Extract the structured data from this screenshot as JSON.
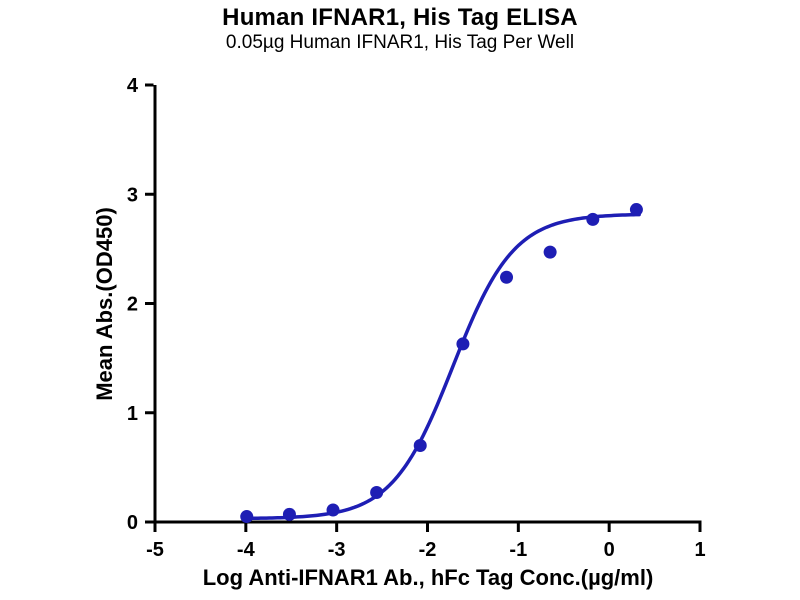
{
  "title": "Human IFNAR1, His Tag ELISA",
  "subtitle": "0.05µg Human IFNAR1, His Tag Per Well",
  "chart_data": {
    "type": "scatter",
    "title": "Human IFNAR1, His Tag ELISA",
    "subtitle": "0.05µg Human IFNAR1, His Tag Per Well",
    "xlabel": "Log Anti-IFNAR1 Ab., hFc Tag Conc.(µg/ml)",
    "ylabel": "Mean Abs.(OD450)",
    "xlim": [
      -5,
      1
    ],
    "ylim": [
      0,
      4
    ],
    "x_ticks": [
      -5,
      -4,
      -3,
      -2,
      -1,
      0,
      1
    ],
    "y_ticks": [
      0,
      1,
      2,
      3,
      4
    ],
    "grid": false,
    "legend": false,
    "point_color": "#1e1eb4",
    "line_color": "#1e1eb4",
    "axis_color": "#000000",
    "points": [
      {
        "x": -3.99,
        "y": 0.05
      },
      {
        "x": -3.52,
        "y": 0.07
      },
      {
        "x": -3.04,
        "y": 0.11
      },
      {
        "x": -2.56,
        "y": 0.27
      },
      {
        "x": -2.08,
        "y": 0.7
      },
      {
        "x": -1.61,
        "y": 1.63
      },
      {
        "x": -1.13,
        "y": 2.24
      },
      {
        "x": -0.65,
        "y": 2.47
      },
      {
        "x": -0.18,
        "y": 2.77
      },
      {
        "x": 0.3,
        "y": 2.86
      }
    ],
    "fit": {
      "model": "4PL",
      "bottom": 0.03,
      "top": 2.82,
      "logEC50": -1.72,
      "hill": 1.3
    }
  }
}
